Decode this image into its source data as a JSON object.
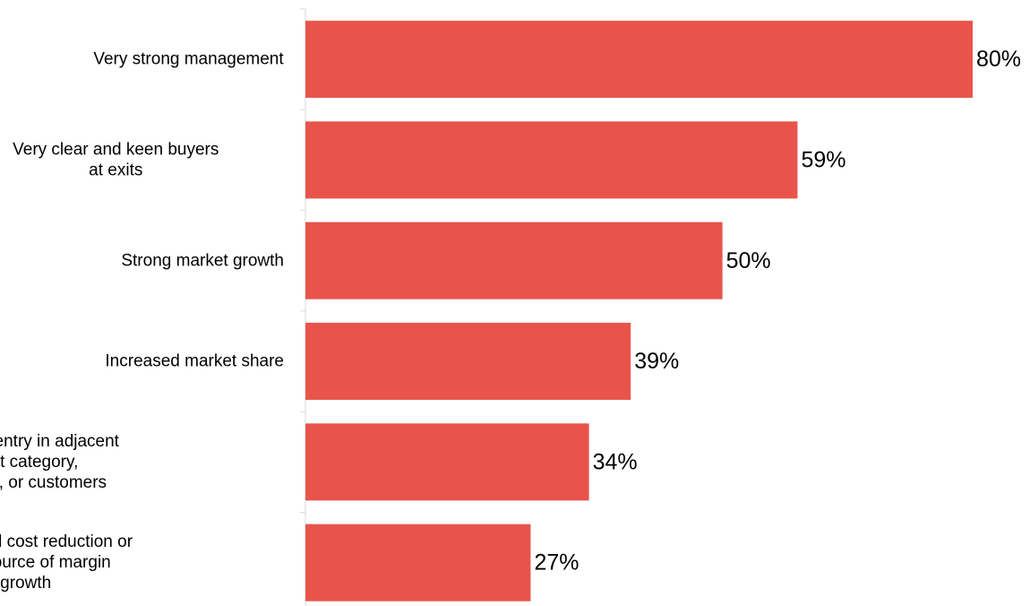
{
  "chart_data": {
    "type": "bar",
    "orientation": "horizontal",
    "categories": [
      "Very strong management",
      "Very clear and keen buyers at exits",
      "Strong market growth",
      "Increased market share",
      "Successful entry in adjacent product category, geography, or customers",
      "Meaningful cost reduction or other source of margin growth"
    ],
    "category_lines": [
      [
        "Very strong management"
      ],
      [
        "Very clear and keen buyers",
        "at exits"
      ],
      [
        "Strong market growth"
      ],
      [
        "Increased market share"
      ],
      [
        "Successful entry in adjacent",
        "product category,",
        "geography, or customers"
      ],
      [
        "Meaningful cost reduction or",
        "other source of margin",
        "growth"
      ]
    ],
    "values": [
      80,
      59,
      50,
      39,
      34,
      27
    ],
    "value_labels": [
      "80%",
      "59%",
      "50%",
      "39%",
      "34%",
      "27%"
    ],
    "xlim": [
      0,
      80
    ],
    "grid": false,
    "legend": "none",
    "bar_color": "#E8544B",
    "axis_color": "#D9D9D9"
  }
}
